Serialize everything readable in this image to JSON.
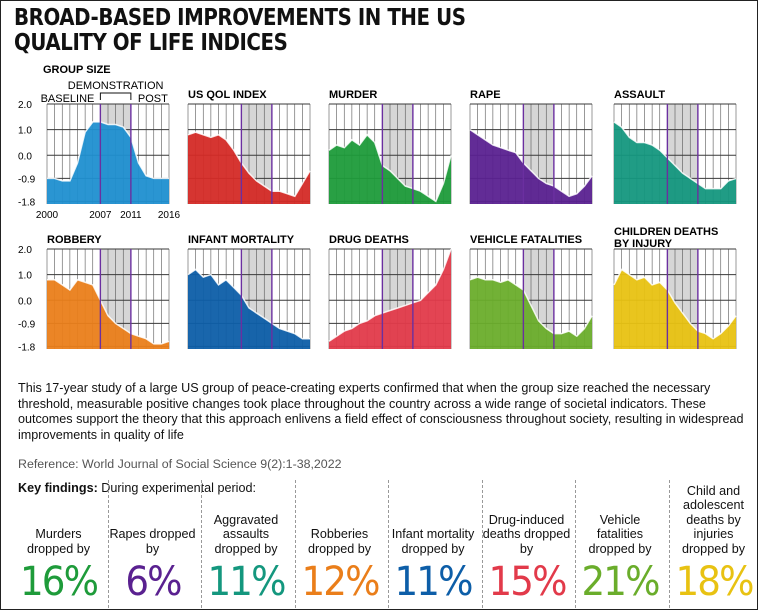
{
  "title": [
    "BROAD-BASED IMPROVEMENTS IN THE US",
    "QUALITY OF LIFE INDICES"
  ],
  "periods": {
    "demonstration": "DEMONSTRATION",
    "baseline": "BASELINE",
    "post": "POST"
  },
  "colors": {
    "grid": "#3a3a3a",
    "demo_shade": "#d6d6d6",
    "marker": "#6b2fa0"
  },
  "chart_data": [
    {
      "type": "area",
      "title": "GROUP SIZE",
      "color": "#1f8fd0",
      "x": [
        2000,
        2001,
        2002,
        2003,
        2004,
        2005,
        2006,
        2007,
        2008,
        2009,
        2010,
        2011,
        2012,
        2013,
        2014,
        2015,
        2016
      ],
      "values": [
        -0.9,
        -0.9,
        -1.0,
        -1.0,
        -0.3,
        0.9,
        1.3,
        1.3,
        1.2,
        1.2,
        1.1,
        0.7,
        -0.3,
        -0.8,
        -0.9,
        -0.9,
        -0.9
      ],
      "ylim": [
        -1.9,
        2.0
      ],
      "yticks": [
        "2.0",
        "1.0",
        "0.0",
        "-0.9",
        "-1.8"
      ],
      "xticks": [
        "2000",
        "2007",
        "2011",
        "2016"
      ]
    },
    {
      "type": "area",
      "title": "US QOL INDEX",
      "color": "#d42a26",
      "x": [
        2000,
        2001,
        2002,
        2003,
        2004,
        2005,
        2006,
        2007,
        2008,
        2009,
        2010,
        2011,
        2012,
        2013,
        2014,
        2015,
        2016
      ],
      "values": [
        0.8,
        0.9,
        0.8,
        0.7,
        0.8,
        0.6,
        0.2,
        -0.3,
        -0.7,
        -1.0,
        -1.2,
        -1.4,
        -1.4,
        -1.5,
        -1.6,
        -1.1,
        -0.6
      ],
      "ylim": [
        -1.9,
        2.0
      ]
    },
    {
      "type": "area",
      "title": "MURDER",
      "color": "#1e9b3a",
      "x": [
        2000,
        2001,
        2002,
        2003,
        2004,
        2005,
        2006,
        2007,
        2008,
        2009,
        2010,
        2011,
        2012,
        2013,
        2014,
        2015,
        2016
      ],
      "values": [
        0.2,
        0.4,
        0.3,
        0.6,
        0.4,
        0.8,
        0.5,
        -0.4,
        -0.6,
        -0.9,
        -1.2,
        -1.3,
        -1.4,
        -1.6,
        -1.8,
        -1.1,
        0.0
      ],
      "ylim": [
        -1.9,
        2.0
      ]
    },
    {
      "type": "area",
      "title": "RAPE",
      "color": "#5a2190",
      "x": [
        2000,
        2001,
        2002,
        2003,
        2004,
        2005,
        2006,
        2007,
        2008,
        2009,
        2010,
        2011,
        2012,
        2013,
        2014,
        2015,
        2016
      ],
      "values": [
        1.0,
        0.8,
        0.6,
        0.4,
        0.3,
        0.2,
        0.1,
        -0.3,
        -0.6,
        -0.9,
        -1.1,
        -1.2,
        -1.4,
        -1.6,
        -1.5,
        -1.2,
        -0.8
      ],
      "ylim": [
        -1.9,
        2.0
      ]
    },
    {
      "type": "area",
      "title": "ASSAULT",
      "color": "#14977e",
      "x": [
        2000,
        2001,
        2002,
        2003,
        2004,
        2005,
        2006,
        2007,
        2008,
        2009,
        2010,
        2011,
        2012,
        2013,
        2014,
        2015,
        2016
      ],
      "values": [
        1.3,
        1.1,
        0.7,
        0.5,
        0.5,
        0.4,
        0.2,
        -0.1,
        -0.4,
        -0.7,
        -0.9,
        -1.1,
        -1.3,
        -1.3,
        -1.3,
        -1.0,
        -0.9
      ],
      "ylim": [
        -1.9,
        2.0
      ]
    },
    {
      "type": "area",
      "title": "ROBBERY",
      "color": "#ea7e1a",
      "x": [
        2000,
        2001,
        2002,
        2003,
        2004,
        2005,
        2006,
        2007,
        2008,
        2009,
        2010,
        2011,
        2012,
        2013,
        2014,
        2015,
        2016
      ],
      "values": [
        0.8,
        0.8,
        0.6,
        0.4,
        0.8,
        0.7,
        0.6,
        0.0,
        -0.6,
        -0.9,
        -1.1,
        -1.3,
        -1.4,
        -1.5,
        -1.7,
        -1.7,
        -1.6
      ],
      "ylim": [
        -1.9,
        2.0
      ],
      "yticks": [
        "2.0",
        "1.0",
        "0.0",
        "-0.9",
        "-1.8"
      ]
    },
    {
      "type": "area",
      "title": "INFANT MORTALITY",
      "color": "#0d5ea8",
      "x": [
        2000,
        2001,
        2002,
        2003,
        2004,
        2005,
        2006,
        2007,
        2008,
        2009,
        2010,
        2011,
        2012,
        2013,
        2014,
        2015,
        2016
      ],
      "values": [
        1.0,
        1.2,
        0.9,
        1.0,
        0.6,
        0.8,
        0.5,
        0.2,
        -0.3,
        -0.5,
        -0.7,
        -0.9,
        -1.1,
        -1.2,
        -1.3,
        -1.5,
        -1.5
      ],
      "ylim": [
        -1.9,
        2.0
      ]
    },
    {
      "type": "area",
      "title": "DRUG DEATHS",
      "color": "#e23a4a",
      "x": [
        2000,
        2001,
        2002,
        2003,
        2004,
        2005,
        2006,
        2007,
        2008,
        2009,
        2010,
        2011,
        2012,
        2013,
        2014,
        2015,
        2016
      ],
      "values": [
        -1.6,
        -1.4,
        -1.2,
        -1.1,
        -0.9,
        -0.8,
        -0.6,
        -0.5,
        -0.4,
        -0.3,
        -0.2,
        -0.1,
        0.0,
        0.3,
        0.6,
        1.2,
        2.0
      ],
      "ylim": [
        -1.9,
        2.0
      ]
    },
    {
      "type": "area",
      "title": "VEHICLE FATALITIES",
      "color": "#6aad2b",
      "x": [
        2000,
        2001,
        2002,
        2003,
        2004,
        2005,
        2006,
        2007,
        2008,
        2009,
        2010,
        2011,
        2012,
        2013,
        2014,
        2015,
        2016
      ],
      "values": [
        0.8,
        0.9,
        0.8,
        0.8,
        0.7,
        0.8,
        0.6,
        0.4,
        -0.2,
        -0.8,
        -1.1,
        -1.3,
        -1.3,
        -1.2,
        -1.4,
        -1.1,
        -0.6
      ],
      "ylim": [
        -1.9,
        2.0
      ]
    },
    {
      "type": "area",
      "title": "CHILDREN DEATHS BY INJURY",
      "color": "#e8c212",
      "x": [
        2000,
        2001,
        2002,
        2003,
        2004,
        2005,
        2006,
        2007,
        2008,
        2009,
        2010,
        2011,
        2012,
        2013,
        2014,
        2015,
        2016
      ],
      "values": [
        0.6,
        1.2,
        1.0,
        0.8,
        0.9,
        0.6,
        0.7,
        0.4,
        -0.1,
        -0.5,
        -0.9,
        -1.2,
        -1.3,
        -1.5,
        -1.3,
        -1.0,
        -0.6
      ],
      "ylim": [
        -1.9,
        2.0
      ]
    }
  ],
  "body_text": "This 17-year study of a large US group of peace-creating experts confirmed that when the group size reached the necessary threshold, measurable positive changes took place throughout the country across a wide range of societal indicators. These outcomes support the theory that this approach enlivens a field effect of consciousness throughout society, resulting in widespread improvements in quality of life",
  "reference": "Reference: World Journal of Social Science 9(2):1-38,2022",
  "key_findings": {
    "label": "Key findings:",
    "text": " During experimental period:"
  },
  "findings": [
    {
      "label": "Murders dropped by",
      "pct": "16%",
      "color": "#1e9b3a"
    },
    {
      "label": "Rapes dropped by",
      "pct": "6%",
      "color": "#5a2190"
    },
    {
      "label": "Aggravated assaults dropped by",
      "pct": "11%",
      "color": "#14977e"
    },
    {
      "label": "Robberies dropped by",
      "pct": "12%",
      "color": "#ea7e1a"
    },
    {
      "label": "Infant mortality dropped by",
      "pct": "11%",
      "color": "#0d5ea8"
    },
    {
      "label": "Drug-induced deaths dropped by",
      "pct": "15%",
      "color": "#e23a4a"
    },
    {
      "label": "Vehicle fatalities dropped by",
      "pct": "21%",
      "color": "#6aad2b"
    },
    {
      "label": "Child and adolescent deaths by injuries dropped by",
      "pct": "18%",
      "color": "#e8c212"
    }
  ]
}
